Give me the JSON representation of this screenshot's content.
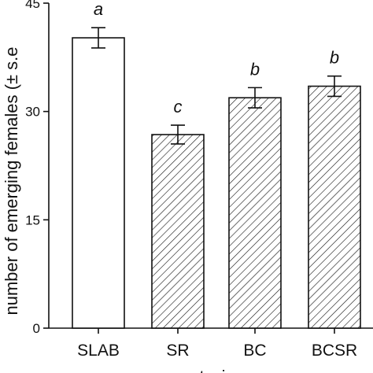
{
  "chart_data": {
    "type": "bar",
    "categories": [
      "SLAB",
      "SR",
      "BC",
      "BCSR"
    ],
    "values": [
      40.2,
      26.8,
      31.9,
      33.5
    ],
    "errors": [
      1.4,
      1.3,
      1.4,
      1.4
    ],
    "significance": [
      "a",
      "c",
      "b",
      "b"
    ],
    "bar_fill": [
      "plain",
      "hatched",
      "hatched",
      "hatched"
    ],
    "ylabel": "number of emerging females (± s.e",
    "xlabel": "…t…i…",
    "yticks": [
      "0",
      "15",
      "30",
      "45"
    ],
    "ylim": [
      0,
      45
    ],
    "grid": false,
    "colors": {
      "bar_outline": "#111111",
      "bar_plain": "#ffffff",
      "hatch": "#111111"
    }
  }
}
